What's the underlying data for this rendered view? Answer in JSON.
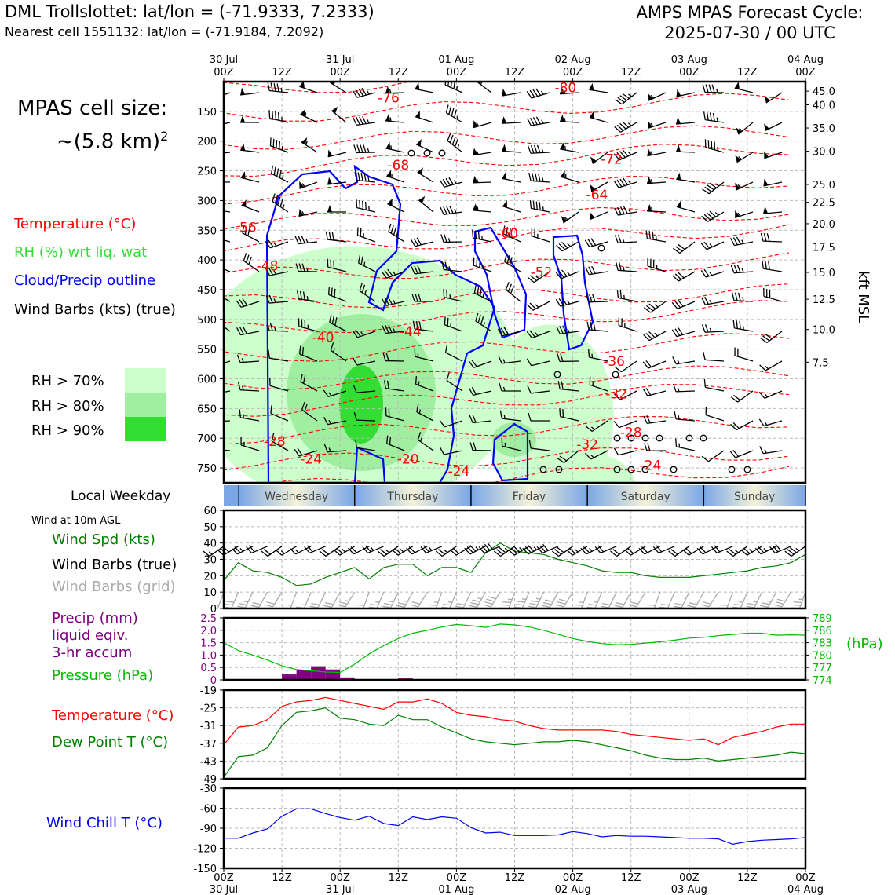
{
  "header": {
    "title_left": "DML Trollslottet: lat/lon = (-71.9333, 7.2333)",
    "subtitle_left": "Nearest cell 1551132: lat/lon = (-71.9184, 7.2092)",
    "title_right_1": "AMPS MPAS Forecast Cycle:",
    "title_right_2": "2025-07-30 / 00 UTC",
    "cell_size_1": "MPAS cell size:",
    "cell_size_2": "~(5.8 km)",
    "cell_size_sup": "2"
  },
  "colors": {
    "temperature": "#ff0000",
    "rh_label": "#33dd33",
    "cloud": "#0000ff",
    "wind_speed": "#008000",
    "precip": "#800080",
    "pressure": "#00bb00",
    "dewpoint": "#008000",
    "windchill": "#0000ee",
    "grid_barb": "#aaaaaa"
  },
  "legend_top": {
    "temperature": "Temperature (°C)",
    "rh": "RH (%) wrt liq. wat",
    "cloud": "Cloud/Precip outline",
    "barbs": "Wind Barbs (kts) (true)",
    "rh70": "RH > 70%",
    "rh80": "RH > 80%",
    "rh90": "RH > 90%"
  },
  "panel_labels": {
    "weekday": "Local Weekday",
    "wind10m": "Wind at 10m AGL",
    "wind_speed": "Wind Spd (kts)",
    "wind_barbs_true": "Wind Barbs (true)",
    "wind_barbs_grid": "Wind Barbs (grid)",
    "precip_1": "Precip (mm)",
    "precip_2": "liquid eqiv.",
    "precip_3": "3-hr accum",
    "pressure": "Pressure (hPa)",
    "pressure_unit": "(hPa)",
    "temperature": "Temperature (°C)",
    "dewpoint": "Dew Point T (°C)",
    "windchill": "Wind Chill T (°C)",
    "kft": "kft MSL"
  },
  "chart_data": {
    "type": "line",
    "time_axis": {
      "top_dates": [
        "30 Jul",
        "",
        "31 Jul",
        "",
        "01 Aug",
        "",
        "02 Aug",
        "",
        "03 Aug",
        "",
        "04 Aug"
      ],
      "top_hours": [
        "00Z",
        "12Z",
        "00Z",
        "12Z",
        "00Z",
        "12Z",
        "00Z",
        "12Z",
        "00Z",
        "12Z",
        "00Z"
      ],
      "bottom_dates": [
        "30 Jul",
        "",
        "31 Jul",
        "",
        "01 Aug",
        "",
        "02 Aug",
        "",
        "03 Aug",
        "",
        "04 Aug"
      ],
      "bottom_hours": [
        "00Z",
        "12Z",
        "00Z",
        "12Z",
        "00Z",
        "12Z",
        "00Z",
        "12Z",
        "00Z",
        "12Z",
        "00Z"
      ],
      "range_hours": [
        0,
        120
      ]
    },
    "weekdays": [
      "Wednesday",
      "Thursday",
      "Friday",
      "Saturday",
      "Sunday"
    ],
    "profile": {
      "pressure_ticks": [
        150,
        200,
        250,
        300,
        350,
        400,
        450,
        500,
        550,
        600,
        650,
        700,
        750
      ],
      "ylim_hpa": [
        100,
        775
      ],
      "kft_ticks": [
        "45.0",
        "40.0",
        "35.0",
        "30.0",
        "25.0",
        "22.5",
        "20.0",
        "17.5",
        "15.0",
        "12.5",
        "10.0",
        "7.5"
      ],
      "kft_ticks_hpa": [
        116,
        139,
        178,
        217,
        273,
        303,
        339,
        378,
        421,
        466,
        517,
        572
      ],
      "temperature_labels": [
        {
          "text": "-80",
          "t": 70.5,
          "p": 110
        },
        {
          "text": "-76",
          "t": 34,
          "p": 127
        },
        {
          "text": "-68",
          "t": 36,
          "p": 240
        },
        {
          "text": "-72",
          "t": 80,
          "p": 230
        },
        {
          "text": "-64",
          "t": 77,
          "p": 290
        },
        {
          "text": "-56",
          "t": 4.5,
          "p": 345
        },
        {
          "text": "-60",
          "t": 58.5,
          "p": 355
        },
        {
          "text": "-48",
          "t": 9,
          "p": 410
        },
        {
          "text": "-52",
          "t": 65.5,
          "p": 420
        },
        {
          "text": "-40",
          "t": 20.5,
          "p": 530
        },
        {
          "text": "-44",
          "t": 38.5,
          "p": 520
        },
        {
          "text": "-36",
          "t": 80.5,
          "p": 570
        },
        {
          "text": "-32",
          "t": 81,
          "p": 625
        },
        {
          "text": "-28",
          "t": 10.5,
          "p": 705
        },
        {
          "text": "-28",
          "t": 84,
          "p": 690
        },
        {
          "text": "-32",
          "t": 75,
          "p": 710
        },
        {
          "text": "-24",
          "t": 18,
          "p": 735
        },
        {
          "text": "-20",
          "t": 38,
          "p": 735
        },
        {
          "text": "-24",
          "t": 48.5,
          "p": 755
        },
        {
          "text": "-24",
          "t": 88,
          "p": 745
        }
      ]
    },
    "wind10m": {
      "ylim": [
        0,
        60
      ],
      "yticks": [
        0,
        10,
        20,
        30,
        40,
        50,
        60
      ],
      "x": [
        0,
        3,
        6,
        9,
        12,
        15,
        18,
        21,
        24,
        27,
        30,
        33,
        36,
        39,
        42,
        45,
        48,
        51,
        54,
        57,
        60,
        63,
        66,
        69,
        72,
        75,
        78,
        81,
        84,
        87,
        90,
        93,
        96,
        99,
        102,
        105,
        108,
        111,
        114,
        117,
        120
      ],
      "speed": [
        17,
        28,
        23,
        22,
        19,
        14,
        15,
        19,
        22,
        25,
        18,
        25,
        27,
        27,
        20,
        25,
        25,
        22,
        34,
        40,
        35,
        34,
        33,
        30,
        28,
        26,
        23,
        22,
        22,
        20,
        19,
        19,
        19,
        20,
        21,
        22,
        23,
        25,
        26,
        28,
        33
      ]
    },
    "precip_pressure": {
      "precip_ylim": [
        0,
        2.5
      ],
      "precip_yticks": [
        "0",
        "0.5",
        "1.0",
        "1.5",
        "2.0",
        "2.5"
      ],
      "pressure_ylim": [
        774,
        789
      ],
      "pressure_ticks": [
        774,
        777,
        780,
        783,
        786,
        789
      ],
      "precip_bars": [
        {
          "t0": 12,
          "t1": 15,
          "value": 0.22
        },
        {
          "t0": 15,
          "t1": 18,
          "value": 0.38
        },
        {
          "t0": 18,
          "t1": 21,
          "value": 0.55
        },
        {
          "t0": 21,
          "t1": 24,
          "value": 0.42
        },
        {
          "t0": 24,
          "t1": 27,
          "value": 0.1
        },
        {
          "t0": 36,
          "t1": 39,
          "value": 0.06
        }
      ],
      "pressure_x": [
        0,
        3,
        6,
        9,
        12,
        15,
        18,
        21,
        24,
        27,
        30,
        33,
        36,
        39,
        42,
        45,
        48,
        51,
        54,
        57,
        60,
        63,
        66,
        69,
        72,
        75,
        78,
        81,
        84,
        87,
        90,
        93,
        96,
        99,
        102,
        105,
        108,
        111,
        114,
        117,
        120
      ],
      "pressure": [
        783.0,
        781.1,
        780.0,
        778.8,
        777.4,
        776.5,
        776.2,
        775.9,
        775.8,
        777.8,
        780.3,
        782.3,
        784.0,
        785.3,
        786.0,
        786.8,
        787.4,
        787.1,
        786.7,
        787.5,
        787.3,
        786.8,
        786.0,
        785.0,
        784.0,
        783.3,
        782.8,
        782.5,
        782.6,
        782.9,
        783.2,
        783.6,
        784.1,
        784.3,
        784.7,
        785.0,
        785.3,
        785.3,
        784.8,
        784.9,
        784.8
      ]
    },
    "temp_dew": {
      "ylim": [
        -49,
        -19
      ],
      "yticks": [
        -19,
        -25,
        -31,
        -37,
        -43,
        -49
      ],
      "x": [
        0,
        3,
        6,
        9,
        12,
        15,
        18,
        21,
        24,
        27,
        30,
        33,
        36,
        39,
        42,
        45,
        48,
        51,
        54,
        57,
        60,
        63,
        66,
        69,
        72,
        75,
        78,
        81,
        84,
        87,
        90,
        93,
        96,
        99,
        102,
        105,
        108,
        111,
        114,
        117,
        120
      ],
      "temperature": [
        -37.5,
        -31.5,
        -31,
        -29,
        -24.5,
        -23,
        -22.5,
        -21.5,
        -22.5,
        -23.5,
        -24.5,
        -25.5,
        -23,
        -23,
        -22,
        -23.5,
        -26.5,
        -27.5,
        -28,
        -29,
        -29.5,
        -31,
        -32,
        -32.5,
        -32.5,
        -32.5,
        -32.5,
        -33,
        -34,
        -34.5,
        -35,
        -35.5,
        -36,
        -35.5,
        -37.5,
        -35,
        -34,
        -33,
        -31.5,
        -30.5,
        -30.5
      ],
      "dewpoint": [
        -48.5,
        -41.5,
        -41,
        -38.5,
        -31,
        -26.5,
        -26,
        -25,
        -28.5,
        -29,
        -30.5,
        -31,
        -27.5,
        -29,
        -29,
        -31.5,
        -33.5,
        -35.5,
        -36.5,
        -37,
        -37.5,
        -37,
        -36.5,
        -36.5,
        -36,
        -36.5,
        -37.5,
        -38.5,
        -39.5,
        -41,
        -42,
        -42.5,
        -42.5,
        -42,
        -43,
        -42.5,
        -42,
        -41.5,
        -41,
        -40,
        -40.5
      ]
    },
    "windchill": {
      "ylim": [
        -150,
        -30
      ],
      "yticks": [
        -30,
        -60,
        -90,
        -120,
        -150
      ],
      "x": [
        0,
        3,
        6,
        9,
        12,
        15,
        18,
        21,
        24,
        27,
        30,
        33,
        36,
        39,
        42,
        45,
        48,
        51,
        54,
        57,
        60,
        63,
        66,
        69,
        72,
        75,
        78,
        81,
        84,
        87,
        90,
        93,
        96,
        99,
        102,
        105,
        108,
        111,
        114,
        117,
        120
      ],
      "values": [
        -105,
        -105,
        -97,
        -91,
        -72,
        -61,
        -61,
        -68,
        -74,
        -78,
        -72,
        -83,
        -86,
        -73,
        -77,
        -73,
        -75,
        -89,
        -97,
        -96,
        -101,
        -101,
        -101,
        -100,
        -95,
        -98,
        -103,
        -101,
        -102,
        -102,
        -103,
        -104,
        -105,
        -105,
        -106,
        -114,
        -110,
        -108,
        -107,
        -106,
        -104
      ]
    }
  }
}
